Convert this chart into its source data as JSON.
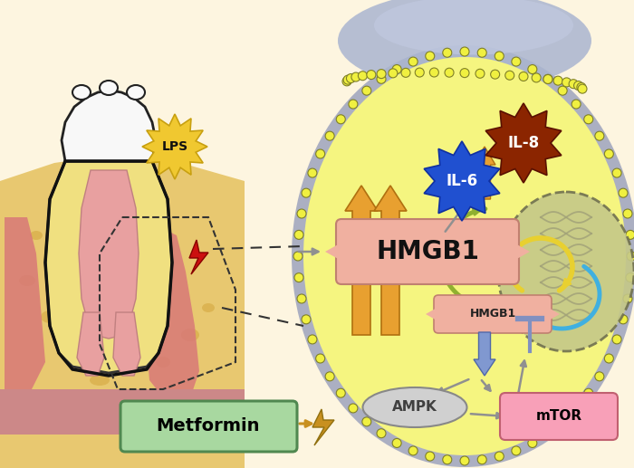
{
  "bg_color": "#fdf5e0",
  "cell_color": "#f5f580",
  "cell_border_outer": "#9090b0",
  "cell_border_inner": "#a0a050",
  "nucleus_color": "#c8c890",
  "nucleus_border": "#707060",
  "labels": {
    "LPS": "LPS",
    "HMGB1_large": "HMGB1",
    "HMGB1_small": "HMGB1",
    "IL6": "IL-6",
    "IL8": "IL-8",
    "AMPK": "AMPK",
    "mTOR": "mTOR",
    "Metformin": "Metformin"
  },
  "colors": {
    "lps_burst": "#f0c830",
    "hmgb1_shape": "#f0b0a0",
    "il6_shape": "#2050d0",
    "il6_text": "#ffffff",
    "il8_shape": "#8B2500",
    "il8_text": "#ffffff",
    "ampk_shape": "#d0d0d0",
    "ampk_text": "#404040",
    "mtor_shape": "#f8a0b8",
    "mtor_text": "#000000",
    "metformin_shape": "#a8d8a0",
    "metformin_border": "#508850",
    "metformin_text": "#000000",
    "arrow_up_orange": "#e8a030",
    "arrow_down_blue": "#8098d0",
    "arrow_gray": "#909090",
    "bolt_red": "#cc1010",
    "bolt_gold": "#c89020",
    "dna_yellow": "#e8d030",
    "dna_cyan": "#40b0e0",
    "curve_green": "#90b030",
    "top_cap_blue": "#b0b8d8"
  }
}
